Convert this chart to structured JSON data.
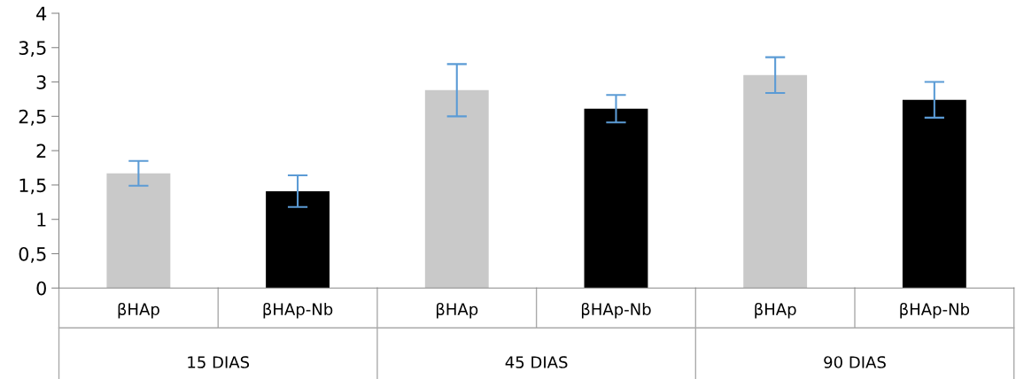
{
  "chart_data": {
    "type": "bar",
    "categories": [
      "βHAp",
      "βHAp-Nb",
      "βHAp",
      "βHAp-Nb",
      "βHAp",
      "βHAp-Nb"
    ],
    "values": [
      1.67,
      1.41,
      2.88,
      2.61,
      3.1,
      2.74
    ],
    "colors": [
      "#c9c9c9",
      "#000000",
      "#c9c9c9",
      "#000000",
      "#c9c9c9",
      "#000000"
    ],
    "errors": [
      0.18,
      0.23,
      0.38,
      0.2,
      0.26,
      0.26
    ],
    "annotations": [
      "15 DIAS",
      "45 DIAS",
      "90 DIAS"
    ],
    "ylim": [
      0,
      4
    ],
    "yticks": [
      0,
      {
        "value": 0.5,
        "label": "0,5"
      },
      1,
      {
        "value": 1.5,
        "label": "1,5"
      },
      2,
      {
        "value": 2.5,
        "label": "2,5"
      },
      3,
      {
        "value": 3.5,
        "label": "3,5"
      },
      4
    ],
    "grid": false
  }
}
